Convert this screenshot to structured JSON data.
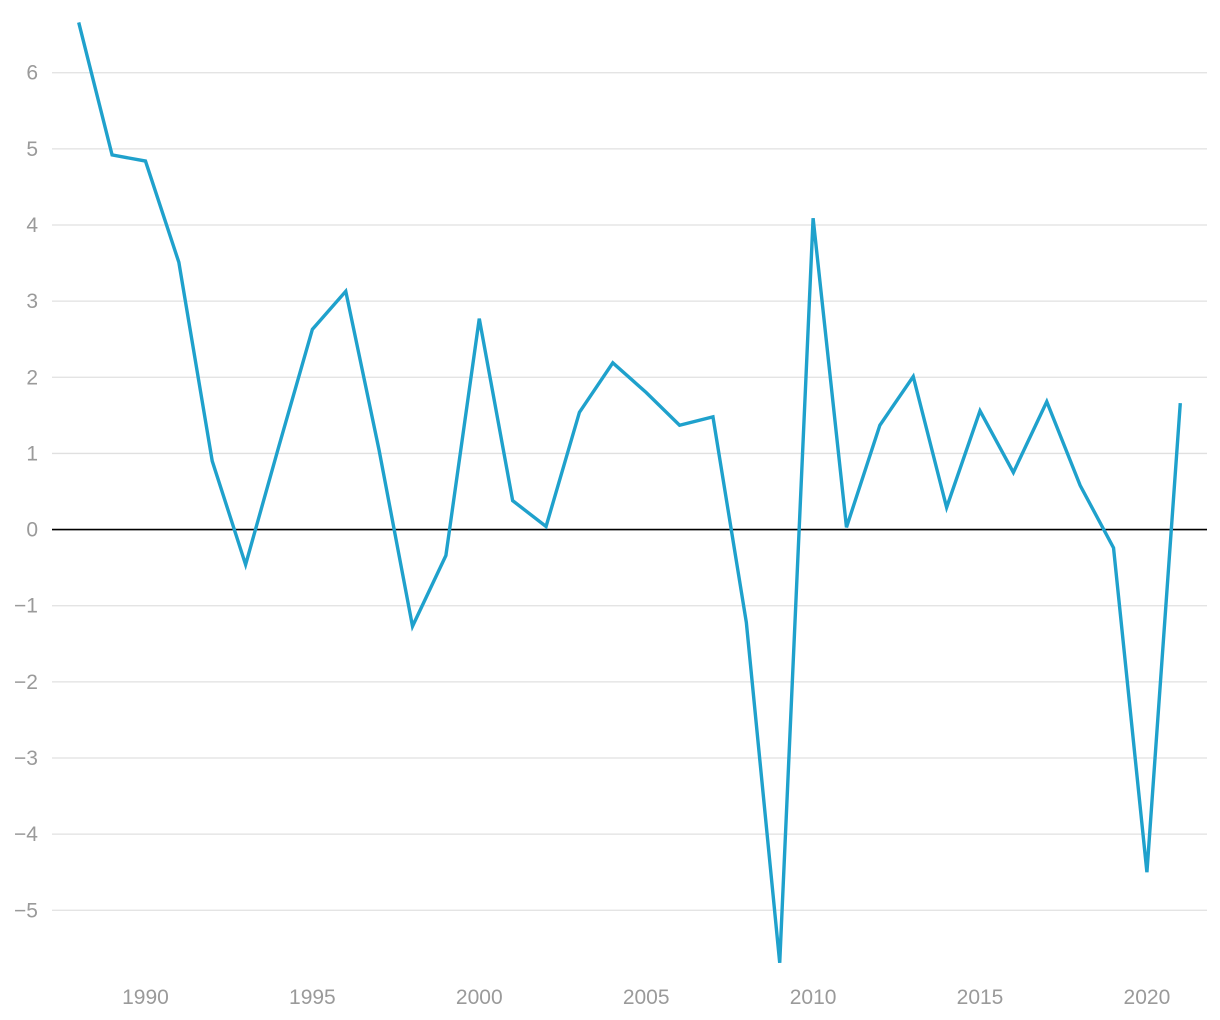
{
  "chart_data": {
    "type": "line",
    "title": "",
    "xlabel": "",
    "ylabel": "",
    "x": [
      1988,
      1989,
      1990,
      1991,
      1992,
      1993,
      1994,
      1995,
      1996,
      1997,
      1998,
      1999,
      2000,
      2001,
      2002,
      2003,
      2004,
      2005,
      2006,
      2007,
      2008,
      2009,
      2010,
      2011,
      2012,
      2013,
      2014,
      2015,
      2016,
      2017,
      2018,
      2019,
      2020,
      2021
    ],
    "series": [
      {
        "color": "#1fa1cc",
        "values": [
          6.66,
          4.92,
          4.84,
          3.51,
          0.9,
          -0.46,
          1.1,
          2.63,
          3.13,
          1.04,
          -1.27,
          -0.34,
          2.77,
          0.38,
          0.04,
          1.54,
          2.19,
          1.8,
          1.37,
          1.48,
          -1.22,
          -5.69,
          4.09,
          0.03,
          1.37,
          2.01,
          0.29,
          1.56,
          0.75,
          1.68,
          0.58,
          -0.24,
          -4.5,
          1.66
        ]
      }
    ],
    "x_ticks": [
      "1990",
      "1995",
      "2000",
      "2005",
      "2010",
      "2015",
      "2020"
    ],
    "x_tick_values": [
      1990,
      1995,
      2000,
      2005,
      2010,
      2015,
      2020
    ],
    "y_ticks": [
      "6",
      "5",
      "4",
      "3",
      "2",
      "1",
      "0",
      "−1",
      "−2",
      "−3",
      "−4",
      "−5"
    ],
    "y_tick_values": [
      6,
      5,
      4,
      3,
      2,
      1,
      0,
      -1,
      -2,
      -3,
      -4,
      -5
    ],
    "xlim": [
      1987.2,
      2021.8
    ],
    "ylim": [
      -5.85,
      6.85
    ],
    "grid": true,
    "zero_line_color": "#000000",
    "grid_color": "#e0e0e0",
    "tick_color": "#9a9a9a"
  }
}
